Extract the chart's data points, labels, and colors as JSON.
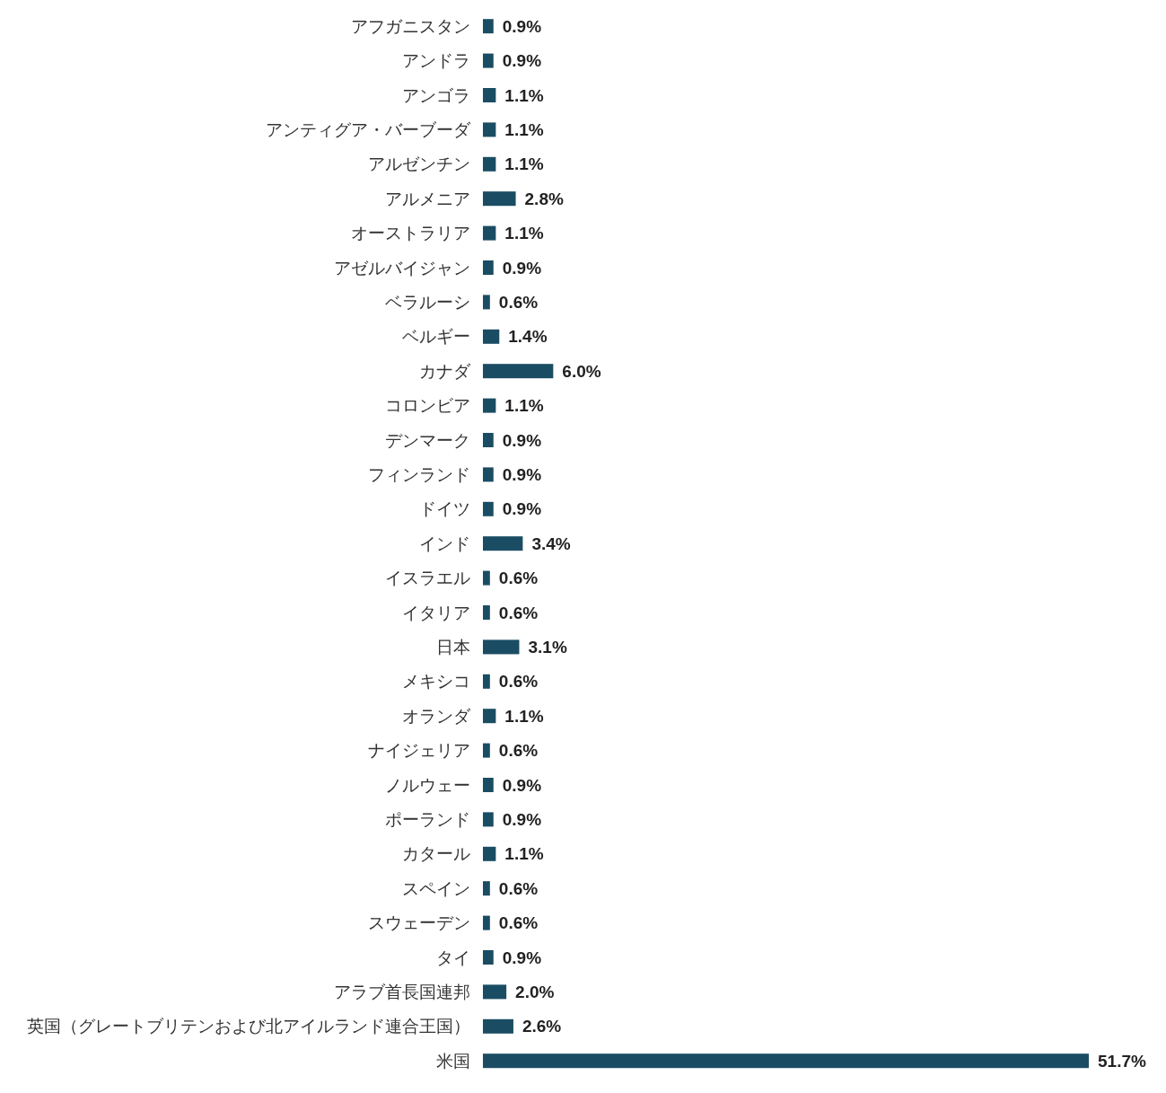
{
  "chart_data": {
    "type": "bar",
    "orientation": "horizontal",
    "color": "#1a4d63",
    "categories": [
      "アフガニスタン",
      "アンドラ",
      "アンゴラ",
      "アンティグア・バーブーダ",
      "アルゼンチン",
      "アルメニア",
      "オーストラリア",
      "アゼルバイジャン",
      "ベラルーシ",
      "ベルギー",
      "カナダ",
      "コロンビア",
      "デンマーク",
      "フィンランド",
      "ドイツ",
      "インド",
      "イスラエル",
      "イタリア",
      "日本",
      "メキシコ",
      "オランダ",
      "ナイジェリア",
      "ノルウェー",
      "ポーランド",
      "カタール",
      "スペイン",
      "スウェーデン",
      "タイ",
      "アラブ首長国連邦",
      "英国（グレートブリテンおよび北アイルランド連合王国）",
      "米国"
    ],
    "values": [
      0.9,
      0.9,
      1.1,
      1.1,
      1.1,
      2.8,
      1.1,
      0.9,
      0.6,
      1.4,
      6.0,
      1.1,
      0.9,
      0.9,
      0.9,
      3.4,
      0.6,
      0.6,
      3.1,
      0.6,
      1.1,
      0.6,
      0.9,
      0.9,
      1.1,
      0.6,
      0.6,
      0.9,
      2.0,
      2.6,
      51.7
    ],
    "value_labels": [
      "0.9%",
      "0.9%",
      "1.1%",
      "1.1%",
      "1.1%",
      "2.8%",
      "1.1%",
      "0.9%",
      "0.6%",
      "1.4%",
      "6.0%",
      "1.1%",
      "0.9%",
      "0.9%",
      "0.9%",
      "3.4%",
      "0.6%",
      "0.6%",
      "3.1%",
      "0.6%",
      "1.1%",
      "0.6%",
      "0.9%",
      "0.9%",
      "1.1%",
      "0.6%",
      "0.6%",
      "0.9%",
      "2.0%",
      "2.6%",
      "51.7%"
    ]
  }
}
